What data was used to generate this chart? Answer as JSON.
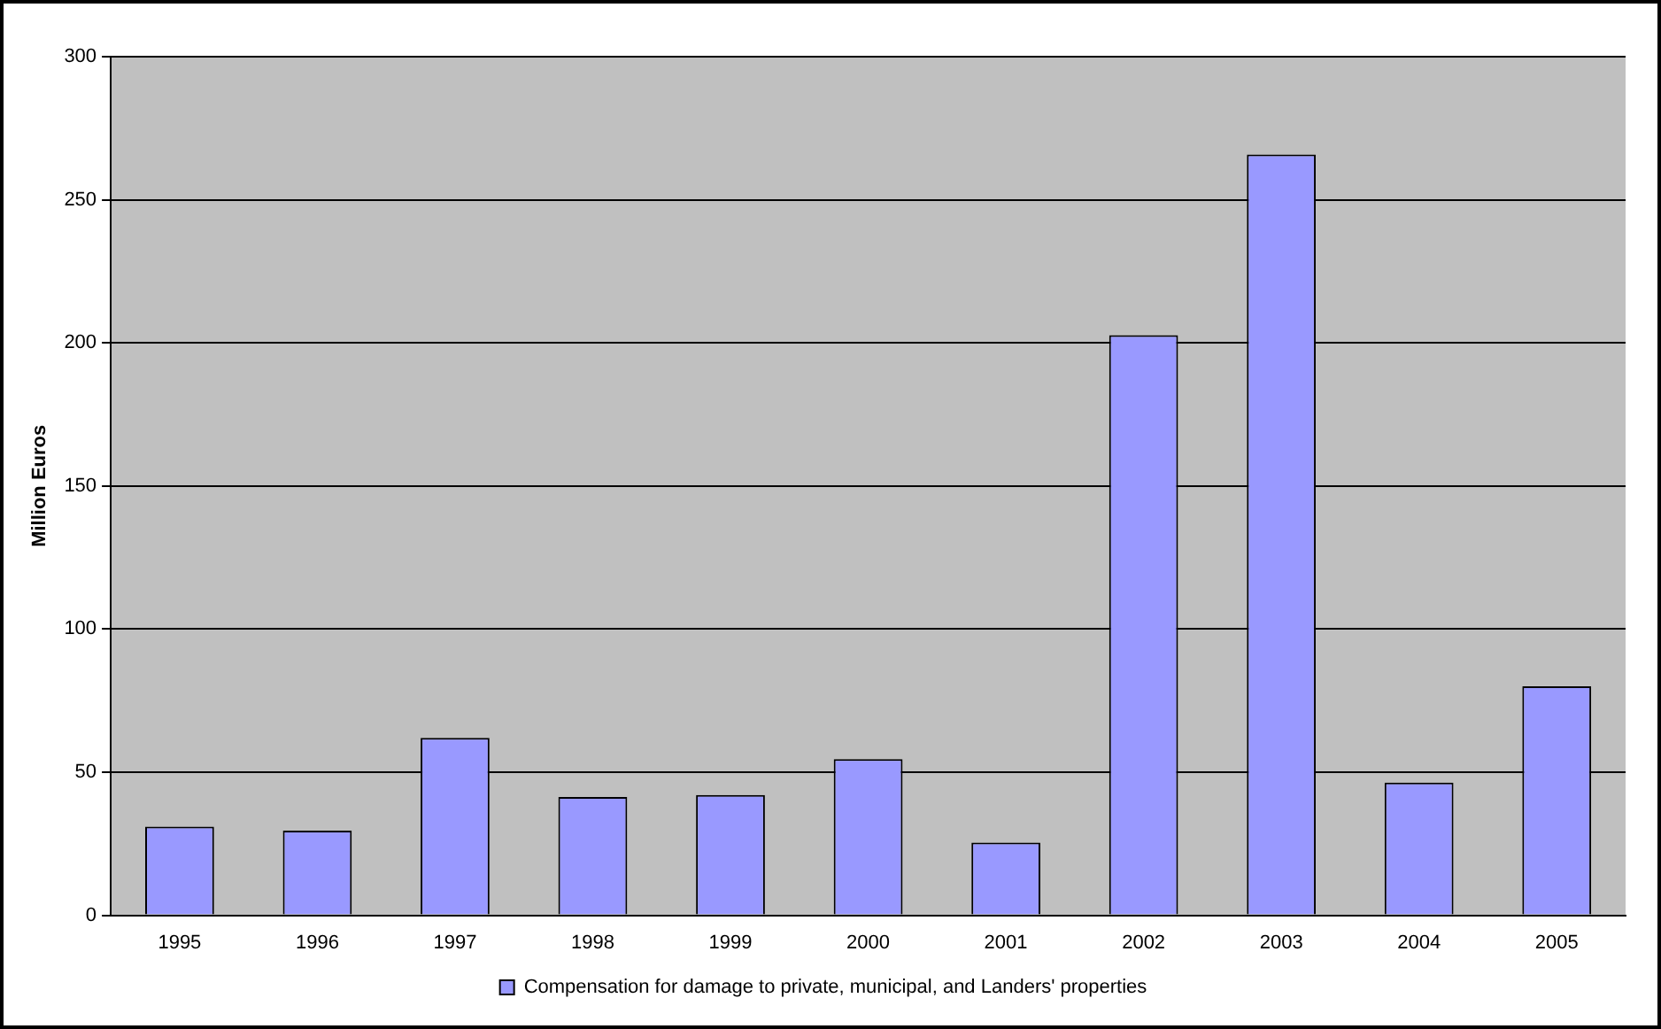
{
  "chart_data": {
    "type": "bar",
    "ylabel": "Million Euros",
    "categories": [
      "1995",
      "1996",
      "1997",
      "1998",
      "1999",
      "2000",
      "2001",
      "2002",
      "2003",
      "2004",
      "2005"
    ],
    "series": [
      {
        "name": "Compensation for damage to private, municipal, and Landers' properties",
        "color": "#9999ff",
        "values": [
          31,
          29.6,
          62,
          41.3,
          42,
          54.6,
          25.4,
          202.7,
          265.8,
          46.4,
          80
        ]
      }
    ],
    "ylim": [
      0,
      300
    ],
    "yticks": [
      0,
      50,
      100,
      150,
      200,
      250,
      300
    ],
    "grid": "y",
    "legend": "bottom"
  }
}
